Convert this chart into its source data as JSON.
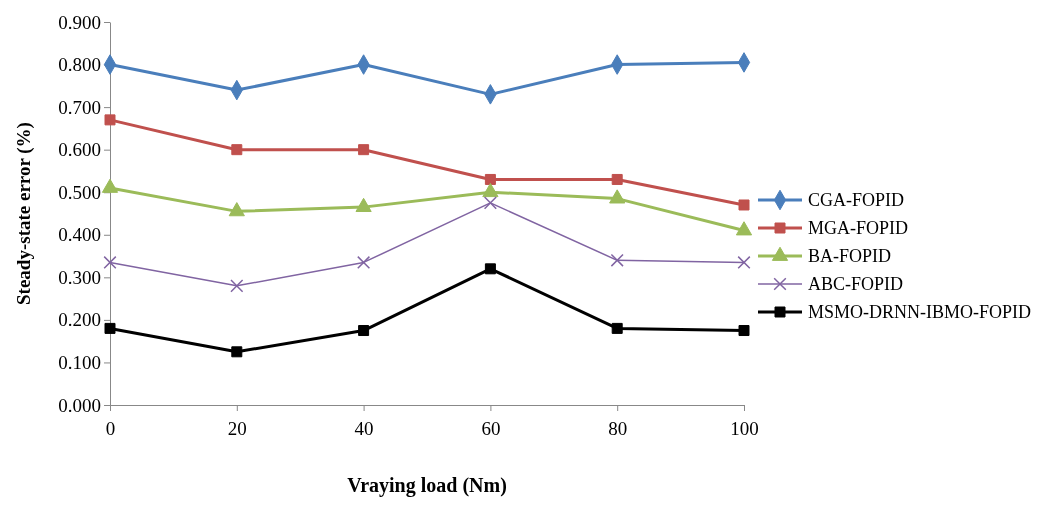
{
  "chart_data": {
    "type": "line",
    "xlabel": "Vraying load (Nm)",
    "ylabel": "Steady-state error (%)",
    "x": [
      0,
      20,
      40,
      60,
      80,
      100
    ],
    "xlim": [
      0,
      100
    ],
    "xticks": [
      0,
      20,
      40,
      60,
      80,
      100
    ],
    "ylim": [
      0,
      0.9
    ],
    "yticks": [
      {
        "value": 0,
        "label": "0.000"
      },
      {
        "value": 0.1,
        "label": "0.100"
      },
      {
        "value": 0.2,
        "label": "0.200"
      },
      {
        "value": 0.3,
        "label": "0.300"
      },
      {
        "value": 0.4,
        "label": "0.400"
      },
      {
        "value": 0.5,
        "label": "0.500"
      },
      {
        "value": 0.6,
        "label": "0.600"
      },
      {
        "value": 0.7,
        "label": "0.700"
      },
      {
        "value": 0.8,
        "label": "0.800"
      },
      {
        "value": 0.9,
        "label": "0.900"
      }
    ],
    "grid": false,
    "legend": "right",
    "series": [
      {
        "name": "CGA-FOPID",
        "color": "#4a7ebb",
        "marker": "diamond",
        "values": [
          0.8,
          0.74,
          0.8,
          0.73,
          0.8,
          0.805
        ]
      },
      {
        "name": "MGA-FOPID",
        "color": "#c0504d",
        "marker": "square",
        "values": [
          0.67,
          0.6,
          0.6,
          0.53,
          0.53,
          0.47
        ]
      },
      {
        "name": "BA-FOPID",
        "color": "#9bbb59",
        "marker": "triangle",
        "values": [
          0.51,
          0.455,
          0.465,
          0.5,
          0.485,
          0.41
        ]
      },
      {
        "name": "ABC-FOPID",
        "color": "#8064a2",
        "marker": "cross",
        "values": [
          0.335,
          0.28,
          0.335,
          0.475,
          0.34,
          0.335
        ]
      },
      {
        "name": "MSMO-DRNN-IBMO-FOPID",
        "color": "#000000",
        "marker": "square",
        "values": [
          0.18,
          0.125,
          0.175,
          0.32,
          0.18,
          0.175
        ]
      }
    ]
  }
}
